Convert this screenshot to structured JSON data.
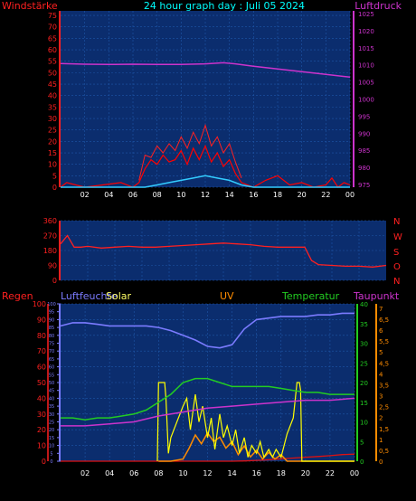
{
  "colors": {
    "background": "#000000",
    "plot_bg": "#0b2d6e",
    "grid": "#1e56a8",
    "title": "#00ffff",
    "windspeed": "#ff0000",
    "gust": "#ff2020",
    "wind_avg": "#33ccff",
    "pressure": "#cc33cc",
    "direction": "#ff2020",
    "humidity": "#7b7bff",
    "temperature": "#22cc22",
    "dewpoint": "#cc33cc",
    "solar": "#ffff00",
    "uv": "#ff8c00",
    "rain": "#dd1111"
  },
  "chart_data": [
    {
      "type": "line",
      "title": "24 hour graph day : Juli 05 2024",
      "left_label": "Windstärke",
      "right_label": "Luftdruck",
      "x_ticks": [
        "02",
        "04",
        "06",
        "08",
        "10",
        "12",
        "14",
        "16",
        "18",
        "20",
        "22",
        "00"
      ],
      "x_range_hours": [
        0,
        24
      ],
      "y_left_ticks": [
        "0",
        "5",
        "10",
        "15",
        "20",
        "25",
        "30",
        "35",
        "40",
        "45",
        "50",
        "55",
        "60",
        "65",
        "70",
        "75"
      ],
      "y_left_range": [
        0,
        77
      ],
      "y_right_ticks": [
        "975",
        "980",
        "985",
        "990",
        "995",
        "1000",
        "1005",
        "1010",
        "1015",
        "1020",
        "1025"
      ],
      "y_right_range": [
        974.2,
        1025.8
      ],
      "grid": true,
      "series": [
        {
          "key": "pressure",
          "x": [
            0,
            2,
            4,
            6,
            8,
            10,
            12,
            13.5,
            14.5,
            16,
            18,
            20,
            22,
            24
          ],
          "y": [
            1010.4,
            1010.2,
            1010.1,
            1010.2,
            1010.1,
            1010.1,
            1010.3,
            1010.6,
            1010.3,
            1009.6,
            1008.8,
            1008.0,
            1007.2,
            1006.4
          ]
        },
        {
          "key": "windspeed",
          "x": [
            0,
            0.5,
            2,
            3.5,
            5,
            6,
            6.5,
            7,
            7.5,
            8,
            8.5,
            9,
            9.5,
            10,
            10.5,
            11,
            11.5,
            12,
            12.5,
            13,
            13.5,
            14,
            14.5,
            15,
            16,
            17,
            18,
            19,
            20,
            21,
            22,
            22.5,
            23,
            23.5,
            24
          ],
          "y": [
            0,
            2,
            0,
            1,
            2,
            0,
            2,
            8,
            12,
            10,
            14,
            11,
            12,
            16,
            10,
            17,
            12,
            18,
            11,
            15,
            9,
            12,
            6,
            2,
            0,
            3,
            5,
            1,
            2,
            0,
            1,
            4,
            0,
            2,
            1
          ]
        },
        {
          "key": "gust",
          "x": [
            6.5,
            7,
            7.5,
            8,
            8.5,
            9,
            9.5,
            10,
            10.5,
            11,
            11.5,
            12,
            12.5,
            13,
            13.5,
            14,
            14.5,
            15
          ],
          "y": [
            3,
            14,
            13,
            18,
            15,
            19,
            16,
            22,
            17,
            24,
            19,
            27,
            18,
            22,
            15,
            19,
            11,
            4
          ]
        },
        {
          "key": "wind_avg",
          "x": [
            0,
            7,
            8,
            9,
            10,
            11,
            12,
            13,
            14,
            15,
            16,
            24
          ],
          "y": [
            0,
            0,
            1,
            2,
            3,
            4,
            5,
            4,
            3,
            1,
            0,
            0
          ]
        }
      ]
    },
    {
      "type": "line",
      "left_ticks": [
        "360",
        "270",
        "180",
        "90",
        "0"
      ],
      "right_labels": [
        "N",
        "W",
        "S",
        "O",
        "N"
      ],
      "y_range": [
        0,
        360
      ],
      "grid": true,
      "series": [
        {
          "key": "direction",
          "x": [
            0,
            0.5,
            1,
            1.5,
            2,
            3,
            4,
            5,
            6,
            7,
            8,
            9,
            10,
            11,
            12,
            13,
            14,
            15,
            16,
            17,
            18,
            18.5,
            19,
            20,
            21,
            22,
            23,
            24
          ],
          "y": [
            220,
            270,
            200,
            200,
            205,
            195,
            200,
            205,
            200,
            200,
            205,
            210,
            215,
            220,
            225,
            220,
            215,
            205,
            200,
            200,
            200,
            120,
            95,
            90,
            85,
            85,
            80,
            90
          ]
        }
      ]
    },
    {
      "type": "line",
      "labels": {
        "rain": "Regen",
        "humidity": "Luftfeuchte",
        "solar": "Solar",
        "uv": "UV",
        "temperature": "Temperatur",
        "dewpoint": "Taupunkt"
      },
      "x_ticks": [
        "02",
        "04",
        "06",
        "08",
        "10",
        "12",
        "14",
        "16",
        "18",
        "20",
        "22",
        "00"
      ],
      "x_range_hours": [
        0,
        24
      ],
      "rain_ticks": [
        "0",
        "5",
        "10",
        "15",
        "20",
        "25",
        "30",
        "35",
        "40",
        "45",
        "50",
        "55",
        "60",
        "65",
        "70",
        "75",
        "80",
        "85",
        "90",
        "95",
        "100"
      ],
      "rain_range": [
        0,
        100
      ],
      "temp_ticks": [
        "0",
        "5",
        "10",
        "15",
        "20",
        "25",
        "30",
        "35",
        "40"
      ],
      "temp_range": [
        0,
        40
      ],
      "uv_ticks": [
        "0",
        "0,5",
        "1",
        "1,5",
        "2",
        "2,5",
        "3",
        "3,5",
        "4",
        "4,5",
        "5",
        "5,5",
        "6",
        "6,5",
        "7"
      ],
      "uv_range": [
        0,
        7.2
      ],
      "grid": true,
      "series": [
        {
          "key": "humidity",
          "x": [
            0,
            1,
            2,
            3,
            4,
            5,
            6,
            7,
            8,
            9,
            10,
            11,
            12,
            13,
            14,
            15,
            16,
            17,
            18,
            19,
            20,
            21,
            22,
            23,
            24
          ],
          "y": [
            86,
            88,
            88,
            87,
            86,
            86,
            86,
            86,
            85,
            83,
            80,
            77,
            73,
            72,
            74,
            84,
            90,
            91,
            92,
            92,
            92,
            93,
            93,
            94,
            94
          ]
        },
        {
          "key": "temperature",
          "x": [
            0,
            1,
            2,
            3,
            4,
            5,
            6,
            7,
            8,
            9,
            10,
            11,
            12,
            13,
            14,
            15,
            16,
            17,
            18,
            19,
            20,
            21,
            22,
            23,
            24
          ],
          "y": [
            11,
            11,
            10.5,
            11,
            11,
            11.5,
            12,
            13,
            15,
            17,
            20,
            21,
            21,
            20,
            19,
            19,
            19,
            19,
            18.5,
            18,
            17.5,
            17.5,
            17,
            17,
            17
          ]
        },
        {
          "key": "dewpoint",
          "x": [
            0,
            2,
            4,
            6,
            8,
            10,
            12,
            14,
            16,
            18,
            20,
            22,
            24
          ],
          "y": [
            9,
            9,
            9.5,
            10,
            11.5,
            12.5,
            13.5,
            14,
            14.5,
            15,
            15.5,
            15.5,
            16
          ]
        },
        {
          "key": "solar",
          "x": [
            7.9,
            8,
            8.1,
            8.5,
            8.6,
            8.8,
            9,
            9.5,
            10,
            10.3,
            10.6,
            11,
            11.3,
            11.6,
            12,
            12.3,
            12.6,
            13,
            13.3,
            13.6,
            14,
            14.3,
            14.6,
            15,
            15.3,
            15.6,
            16,
            16.3,
            16.6,
            17,
            17.3,
            17.6,
            18,
            18.5,
            19,
            19.3,
            19.5,
            19.6,
            19.7,
            24
          ],
          "y": [
            0,
            20,
            20,
            20,
            16,
            2,
            6,
            10,
            14,
            16,
            8,
            17,
            10,
            14,
            6,
            11,
            3,
            12,
            6,
            9,
            4,
            8,
            2,
            6,
            1,
            4,
            2,
            5,
            1,
            3,
            1,
            3,
            1,
            7,
            11,
            20,
            20,
            18,
            0,
            0
          ]
        },
        {
          "key": "uv",
          "x": [
            8,
            9,
            10,
            10.5,
            11,
            11.5,
            12,
            12.5,
            13,
            13.5,
            14,
            14.5,
            15,
            15.5,
            16,
            16.5,
            17,
            17.5,
            18,
            18.5,
            19,
            20,
            24
          ],
          "y": [
            0,
            0,
            0.1,
            0.6,
            1.2,
            0.8,
            1.3,
            0.9,
            1.1,
            0.6,
            0.9,
            0.3,
            0.7,
            0.2,
            0.5,
            0.1,
            0.4,
            0.1,
            0.3,
            0,
            0,
            0,
            0
          ]
        },
        {
          "key": "rain",
          "x": [
            0,
            14,
            15,
            16,
            17,
            18,
            19,
            20,
            21,
            22,
            23,
            24
          ],
          "y": [
            0,
            0,
            0.2,
            0.5,
            1,
            1.5,
            2,
            2.5,
            3,
            3.5,
            4.2,
            4.5
          ]
        }
      ]
    }
  ]
}
